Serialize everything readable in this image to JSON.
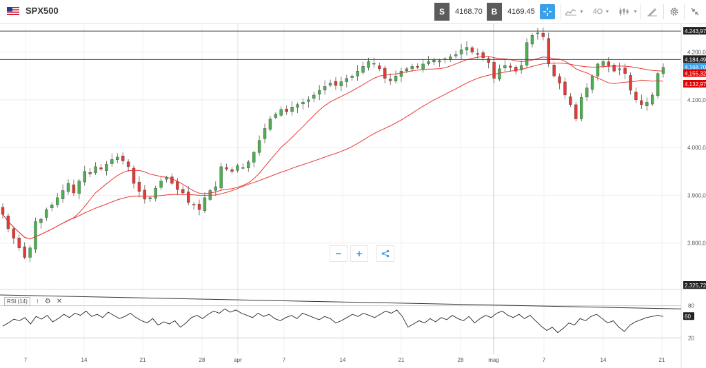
{
  "header": {
    "symbol": "SPX500",
    "sell_label": "S",
    "sell_price": "4168.70",
    "buy_label": "B",
    "buy_price": "4169.45",
    "timeframe": "4O",
    "icons": [
      "flag-icon",
      "crosshair-icon",
      "chart-type-icon",
      "timeframe-icon",
      "indicators-icon",
      "draw-icon",
      "settings-icon",
      "collapse-icon"
    ]
  },
  "zoom": {
    "minus": "−",
    "plus": "+"
  },
  "rsi": {
    "label": "RSI (14)",
    "value_tag": "60",
    "levels": [
      "80",
      "20"
    ],
    "icons": [
      "arrow-up-icon",
      "gear-icon",
      "close-icon"
    ]
  },
  "colors": {
    "up": "#4caf50",
    "down": "#e53935",
    "ma_fast": "#e53935",
    "ma_slow": "#e53935",
    "current_tag": "#3aa0e8",
    "ma_tag": "#e00000",
    "dark_tag": "#222222"
  },
  "chart_data": {
    "type": "candlestick",
    "title": "SPX500",
    "y_ticks": [
      "4.200,00",
      "4.100,00",
      "4.000,00",
      "3.900,00",
      "3.800,00"
    ],
    "y_tick_values": [
      4200,
      4100,
      4000,
      3900,
      3800
    ],
    "ylim": [
      3700,
      4260
    ],
    "x_ticks": [
      "7",
      "14",
      "21",
      "28",
      "apr",
      "7",
      "14",
      "21",
      "28",
      "mag",
      "7",
      "14",
      "21"
    ],
    "price_tags": [
      {
        "label": "4.243,97",
        "value": 4243.97,
        "style": "dark"
      },
      {
        "label": "4.184,49",
        "value": 4184.49,
        "style": "dark"
      },
      {
        "label": "4.168,70",
        "value": 4168.7,
        "style": "current"
      },
      {
        "label": "4.155,32",
        "value": 4155.32,
        "style": "ma"
      },
      {
        "label": "4.132,97",
        "value": 4132.97,
        "style": "ma"
      }
    ],
    "horizontal_lines": [
      4243.97,
      4184.49
    ],
    "bottom_tag": "2.325,72",
    "close_series": [
      3860,
      3830,
      3810,
      3790,
      3770,
      3790,
      3845,
      3850,
      3870,
      3880,
      3895,
      3910,
      3925,
      3905,
      3930,
      3950,
      3945,
      3960,
      3955,
      3965,
      3975,
      3980,
      3972,
      3960,
      3925,
      3908,
      3892,
      3895,
      3915,
      3930,
      3938,
      3925,
      3912,
      3905,
      3885,
      3880,
      3870,
      3895,
      3910,
      3918,
      3960,
      3955,
      3950,
      3962,
      3958,
      3970,
      3990,
      4015,
      4040,
      4060,
      4070,
      4080,
      4075,
      4085,
      4090,
      4095,
      4100,
      4110,
      4120,
      4128,
      4135,
      4130,
      4138,
      4145,
      4150,
      4160,
      4170,
      4180,
      4175,
      4165,
      4145,
      4140,
      4150,
      4160,
      4165,
      4170,
      4168,
      4175,
      4180,
      4183,
      4182,
      4186,
      4190,
      4195,
      4205,
      4210,
      4200,
      4195,
      4188,
      4178,
      4145,
      4165,
      4172,
      4168,
      4160,
      4172,
      4220,
      4235,
      4240,
      4232,
      4175,
      4150,
      4135,
      4110,
      4090,
      4060,
      4105,
      4125,
      4150,
      4175,
      4180,
      4170,
      4160,
      4165,
      4155,
      4120,
      4100,
      4090,
      4095,
      4110,
      4155,
      4168
    ]
  },
  "rsi_data": {
    "ylim": [
      0,
      100
    ],
    "levels": [
      80,
      20
    ],
    "values": [
      42,
      48,
      55,
      52,
      58,
      46,
      60,
      55,
      62,
      50,
      56,
      64,
      58,
      66,
      62,
      70,
      60,
      64,
      58,
      68,
      62,
      56,
      60,
      66,
      58,
      52,
      48,
      56,
      44,
      50,
      46,
      52,
      40,
      48,
      58,
      62,
      56,
      64,
      70,
      66,
      74,
      68,
      72,
      66,
      62,
      58,
      66,
      60,
      64,
      56,
      52,
      58,
      62,
      56,
      66,
      62,
      58,
      54,
      60,
      56,
      48,
      52,
      58,
      64,
      60,
      66,
      62,
      58,
      64,
      70,
      66,
      72,
      60,
      40,
      46,
      52,
      48,
      56,
      50,
      58,
      54,
      62,
      56,
      52,
      60,
      48,
      56,
      62,
      58,
      66,
      70,
      62,
      58,
      64,
      56,
      62,
      52,
      42,
      34,
      40,
      30,
      38,
      48,
      44,
      56,
      52,
      60,
      64,
      56,
      48,
      52,
      40,
      32,
      44,
      50,
      54,
      58,
      60,
      62,
      60
    ]
  }
}
